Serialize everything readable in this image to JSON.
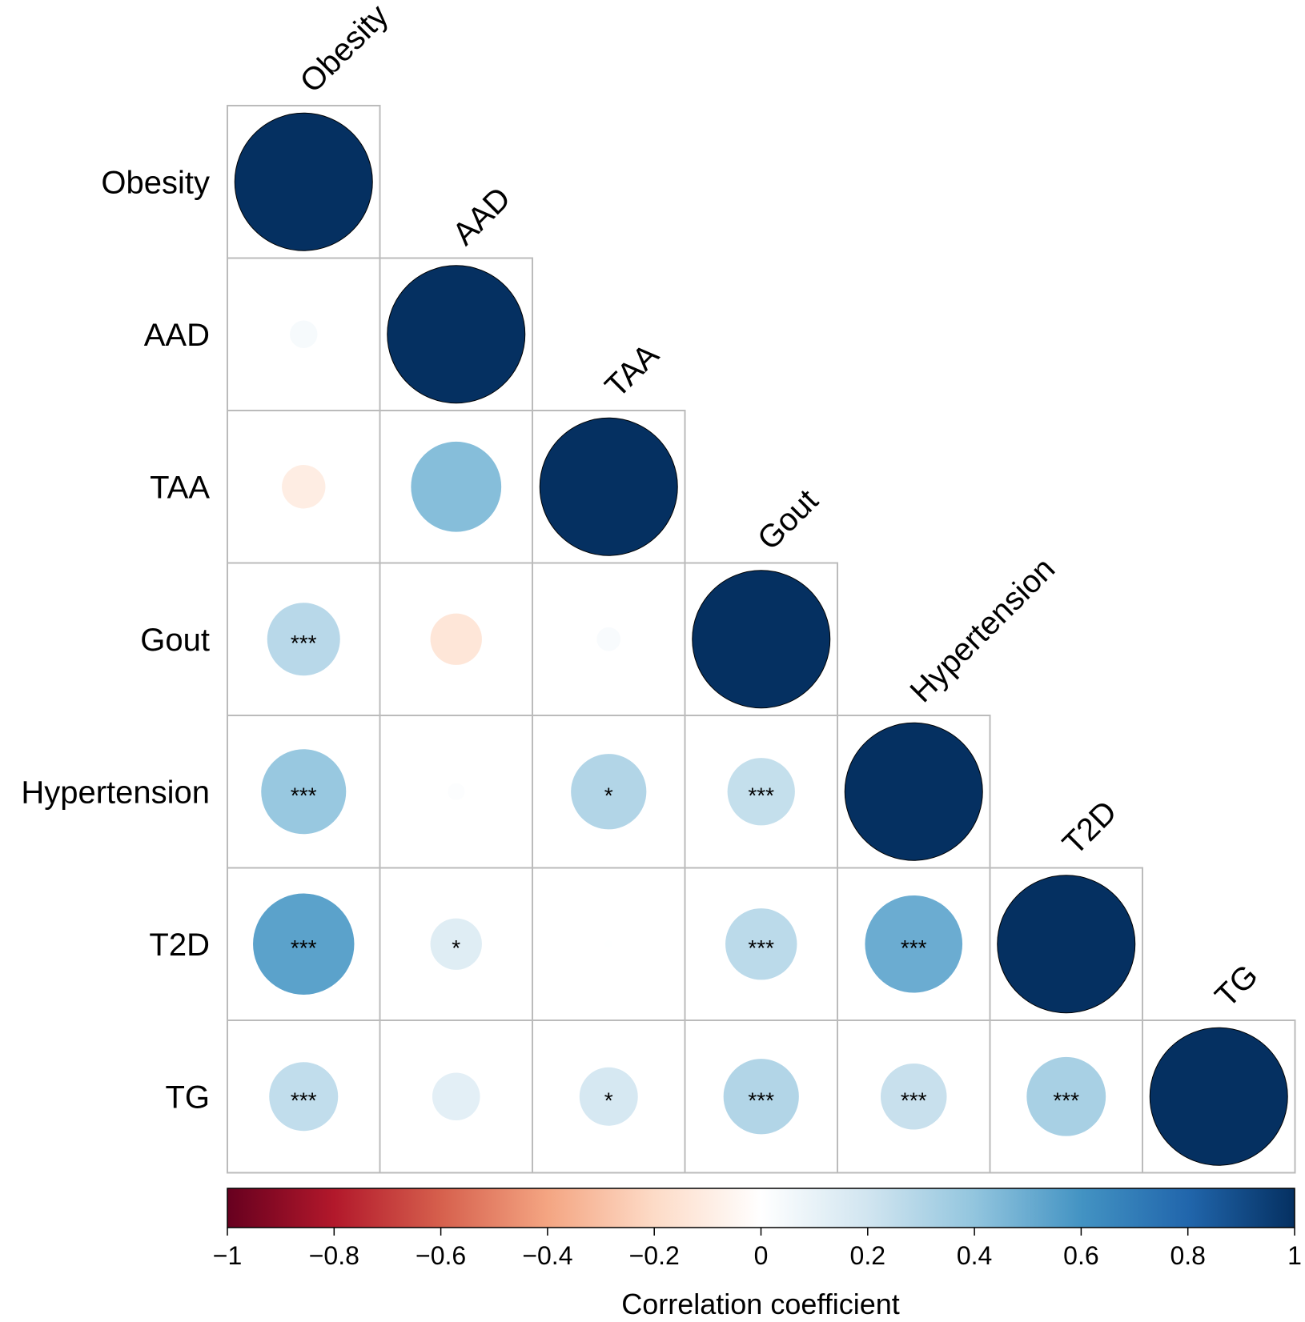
{
  "chart_data": {
    "type": "heatmap",
    "style": "correlation-circles-lower-triangle",
    "variables": [
      "Obesity",
      "AAD",
      "TAA",
      "Gout",
      "Hypertension",
      "T2D",
      "TG"
    ],
    "cells": [
      {
        "row": "Obesity",
        "col": "Obesity",
        "value": 1.0,
        "sig": ""
      },
      {
        "row": "AAD",
        "col": "Obesity",
        "value": 0.04,
        "sig": ""
      },
      {
        "row": "AAD",
        "col": "AAD",
        "value": 1.0,
        "sig": ""
      },
      {
        "row": "TAA",
        "col": "Obesity",
        "value": -0.1,
        "sig": ""
      },
      {
        "row": "TAA",
        "col": "AAD",
        "value": 0.43,
        "sig": ""
      },
      {
        "row": "TAA",
        "col": "TAA",
        "value": 1.0,
        "sig": ""
      },
      {
        "row": "Gout",
        "col": "Obesity",
        "value": 0.28,
        "sig": "***"
      },
      {
        "row": "Gout",
        "col": "AAD",
        "value": -0.14,
        "sig": ""
      },
      {
        "row": "Gout",
        "col": "TAA",
        "value": 0.03,
        "sig": ""
      },
      {
        "row": "Gout",
        "col": "Gout",
        "value": 1.0,
        "sig": ""
      },
      {
        "row": "Hypertension",
        "col": "Obesity",
        "value": 0.38,
        "sig": "***"
      },
      {
        "row": "Hypertension",
        "col": "AAD",
        "value": 0.015,
        "sig": ""
      },
      {
        "row": "Hypertension",
        "col": "TAA",
        "value": 0.3,
        "sig": "*"
      },
      {
        "row": "Hypertension",
        "col": "Gout",
        "value": 0.24,
        "sig": "***"
      },
      {
        "row": "Hypertension",
        "col": "Hypertension",
        "value": 1.0,
        "sig": ""
      },
      {
        "row": "T2D",
        "col": "Obesity",
        "value": 0.54,
        "sig": "***"
      },
      {
        "row": "T2D",
        "col": "AAD",
        "value": 0.14,
        "sig": "*"
      },
      {
        "row": "T2D",
        "col": "TAA",
        "value": 0.003,
        "sig": ""
      },
      {
        "row": "T2D",
        "col": "Gout",
        "value": 0.27,
        "sig": "***"
      },
      {
        "row": "T2D",
        "col": "Hypertension",
        "value": 0.5,
        "sig": "***"
      },
      {
        "row": "T2D",
        "col": "T2D",
        "value": 1.0,
        "sig": ""
      },
      {
        "row": "TG",
        "col": "Obesity",
        "value": 0.25,
        "sig": "***"
      },
      {
        "row": "TG",
        "col": "AAD",
        "value": 0.12,
        "sig": ""
      },
      {
        "row": "TG",
        "col": "TAA",
        "value": 0.18,
        "sig": "*"
      },
      {
        "row": "TG",
        "col": "Gout",
        "value": 0.3,
        "sig": "***"
      },
      {
        "row": "TG",
        "col": "Hypertension",
        "value": 0.23,
        "sig": "***"
      },
      {
        "row": "TG",
        "col": "T2D",
        "value": 0.33,
        "sig": "***"
      },
      {
        "row": "TG",
        "col": "TG",
        "value": 1.0,
        "sig": ""
      }
    ],
    "colorbar": {
      "label": "Correlation coefficient",
      "range": [
        -1,
        1
      ],
      "ticks": [
        -1,
        -0.8,
        -0.6,
        -0.4,
        -0.2,
        0,
        0.2,
        0.4,
        0.6,
        0.8,
        1
      ],
      "tick_labels": [
        "−1",
        "−0.8",
        "−0.6",
        "−0.4",
        "−0.2",
        "0",
        "0.2",
        "0.4",
        "0.6",
        "0.8",
        "1"
      ],
      "colors": [
        "#67001F",
        "#B2182B",
        "#D6604D",
        "#F4A582",
        "#FDDBC7",
        "#FFFFFF",
        "#D1E5F0",
        "#92C5DE",
        "#4393C3",
        "#2166AC",
        "#053061"
      ]
    },
    "grid_color": "#bbbbbb"
  }
}
